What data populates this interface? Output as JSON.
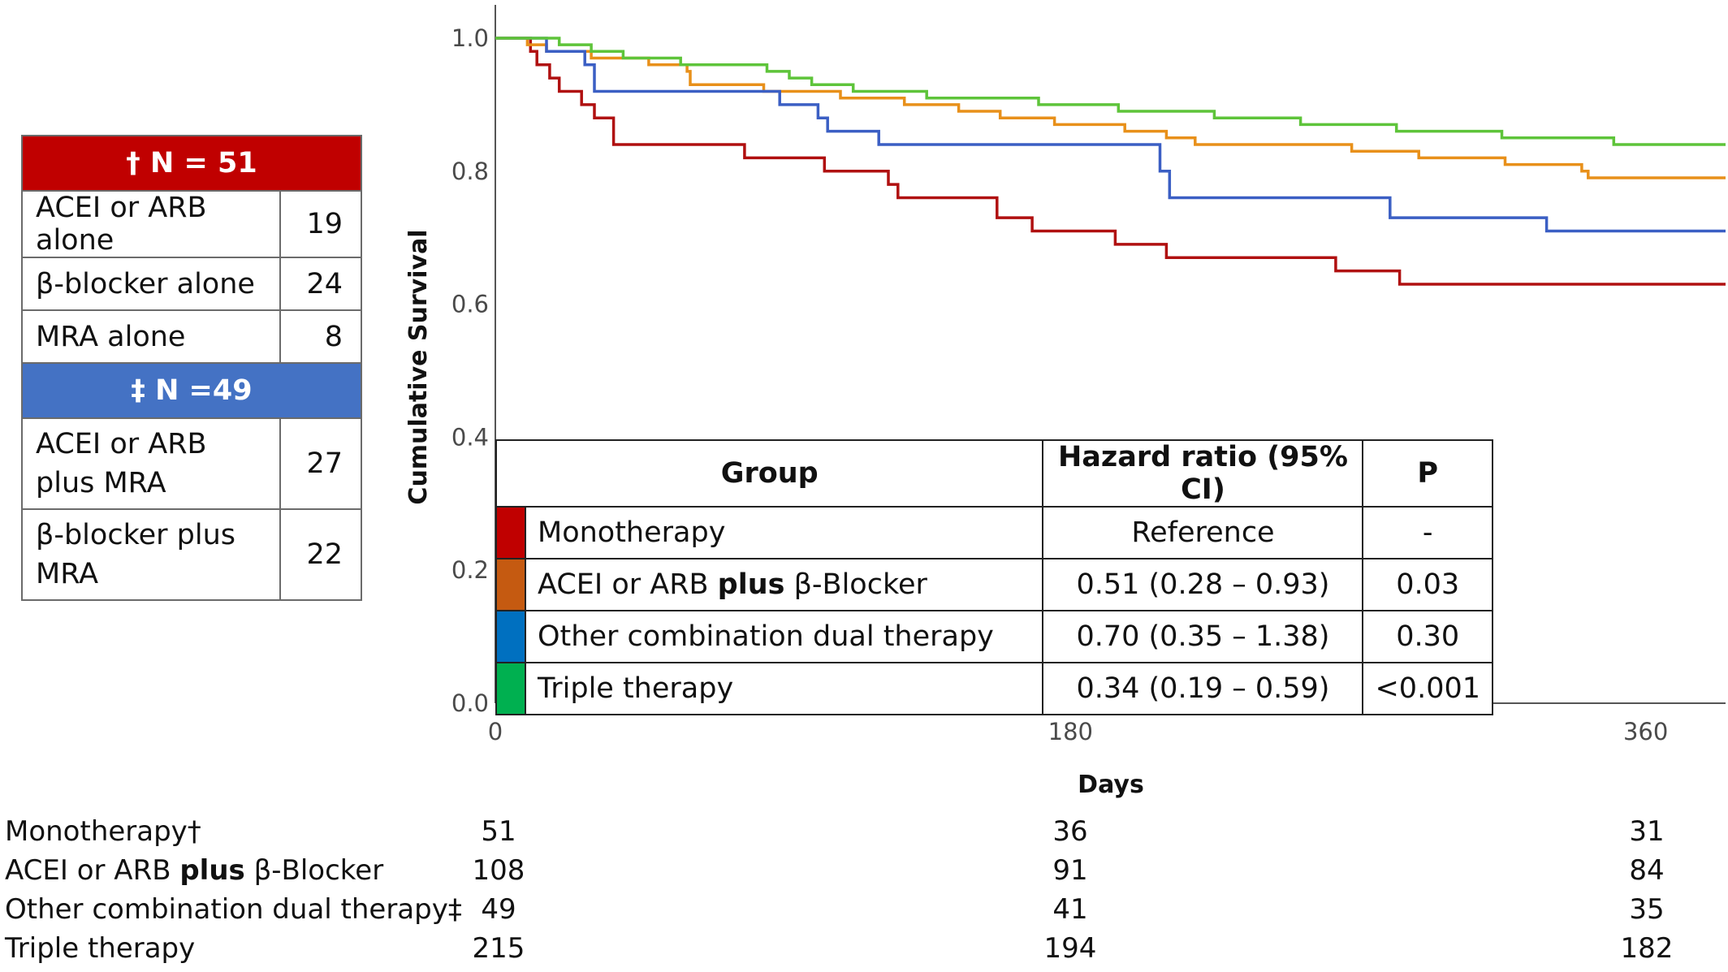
{
  "group_table": {
    "monotherapy_header": "† N = 51",
    "mono_rows": [
      {
        "label": "ACEI or ARB alone",
        "n": "19"
      },
      {
        "label": "β-blocker alone",
        "n": "24"
      },
      {
        "label": "MRA alone",
        "n": "8"
      }
    ],
    "dual_header": "‡ N =49",
    "dual_rows": [
      {
        "label": "ACEI or ARB plus MRA",
        "n": "27"
      },
      {
        "label": "β-blocker plus MRA",
        "n": "22"
      }
    ],
    "colors": {
      "mono_header": "#c00000",
      "dual_header": "#4472c4"
    }
  },
  "hr_table": {
    "headers": [
      "Group",
      "Hazard ratio (95% CI)",
      "P"
    ],
    "rows": [
      {
        "color": "#c00000",
        "group": "Monotherapy",
        "hr": "Reference",
        "p": "-"
      },
      {
        "color": "#c55a11",
        "group_pre": "ACEI or ARB ",
        "group_bold": "plus",
        "group_post": " β-Blocker",
        "hr": "0.51 (0.28 – 0.93)",
        "p": "0.03"
      },
      {
        "color": "#0070c0",
        "group": "Other combination dual therapy",
        "hr": "0.70 (0.35 – 1.38)",
        "p": "0.30"
      },
      {
        "color": "#00b050",
        "group": "Triple therapy",
        "hr": "0.34 (0.19 – 0.59)",
        "p": "<0.001"
      }
    ]
  },
  "risk_table": {
    "rows": [
      {
        "label": "Monotherapy†",
        "values": [
          "51",
          "36",
          "31"
        ]
      },
      {
        "label_pre": "ACEI or ARB ",
        "label_bold": "plus",
        "label_post": " β-Blocker",
        "values": [
          "108",
          "91",
          "84"
        ]
      },
      {
        "label": "Other combination dual therapy‡",
        "values": [
          "49",
          "41",
          "35"
        ]
      },
      {
        "label": "Triple therapy",
        "values": [
          "215",
          "194",
          "182"
        ]
      }
    ]
  },
  "chart_data": {
    "type": "line",
    "subtype": "kaplan-meier step",
    "xlabel": "Days",
    "ylabel": "Cumulative Survival",
    "xlim": [
      0,
      385
    ],
    "ylim": [
      0,
      1.05
    ],
    "xticks": [
      0,
      180,
      360
    ],
    "yticks": [
      0.0,
      0.2,
      0.4,
      0.6,
      0.8,
      1.0
    ],
    "ytick_labels": [
      "0.0",
      "0.2",
      "0.4",
      "0.6",
      "0.8",
      "1.0"
    ],
    "grid": false,
    "series": [
      {
        "name": "Monotherapy",
        "color": "#b01010",
        "points": [
          [
            0,
            1.0
          ],
          [
            10,
            1.0
          ],
          [
            11,
            0.98
          ],
          [
            13,
            0.96
          ],
          [
            17,
            0.94
          ],
          [
            20,
            0.92
          ],
          [
            27,
            0.9
          ],
          [
            31,
            0.88
          ],
          [
            37,
            0.84
          ],
          [
            78,
            0.84
          ],
          [
            78,
            0.82
          ],
          [
            103,
            0.82
          ],
          [
            103,
            0.8
          ],
          [
            121,
            0.8
          ],
          [
            123,
            0.78
          ],
          [
            126,
            0.76
          ],
          [
            157,
            0.76
          ],
          [
            157,
            0.73
          ],
          [
            168,
            0.73
          ],
          [
            168,
            0.71
          ],
          [
            194,
            0.71
          ],
          [
            194,
            0.69
          ],
          [
            210,
            0.69
          ],
          [
            210,
            0.67
          ],
          [
            263,
            0.67
          ],
          [
            263,
            0.65
          ],
          [
            283,
            0.65
          ],
          [
            283,
            0.63
          ],
          [
            385,
            0.63
          ]
        ]
      },
      {
        "name": "ACEI or ARB plus β-Blocker",
        "color": "#e8901a",
        "points": [
          [
            0,
            1.0
          ],
          [
            9,
            1.0
          ],
          [
            10,
            0.99
          ],
          [
            16,
            0.98
          ],
          [
            30,
            0.97
          ],
          [
            48,
            0.96
          ],
          [
            60,
            0.95
          ],
          [
            61,
            0.93
          ],
          [
            83,
            0.93
          ],
          [
            84,
            0.92
          ],
          [
            108,
            0.91
          ],
          [
            128,
            0.9
          ],
          [
            145,
            0.89
          ],
          [
            158,
            0.88
          ],
          [
            175,
            0.87
          ],
          [
            197,
            0.86
          ],
          [
            210,
            0.85
          ],
          [
            219,
            0.84
          ],
          [
            268,
            0.83
          ],
          [
            289,
            0.82
          ],
          [
            316,
            0.81
          ],
          [
            340,
            0.8
          ],
          [
            342,
            0.79
          ],
          [
            385,
            0.79
          ]
        ]
      },
      {
        "name": "Other combination dual therapy",
        "color": "#3b5fc4",
        "points": [
          [
            0,
            1.0
          ],
          [
            16,
            1.0
          ],
          [
            16,
            0.98
          ],
          [
            25,
            0.98
          ],
          [
            28,
            0.96
          ],
          [
            31,
            0.94
          ],
          [
            31,
            0.92
          ],
          [
            86,
            0.92
          ],
          [
            89,
            0.9
          ],
          [
            101,
            0.88
          ],
          [
            104,
            0.86
          ],
          [
            120,
            0.86
          ],
          [
            120,
            0.84
          ],
          [
            207,
            0.84
          ],
          [
            208,
            0.8
          ],
          [
            211,
            0.78
          ],
          [
            211,
            0.76
          ],
          [
            280,
            0.76
          ],
          [
            280,
            0.73
          ],
          [
            329,
            0.73
          ],
          [
            329,
            0.71
          ],
          [
            385,
            0.71
          ]
        ]
      },
      {
        "name": "Triple therapy",
        "color": "#5ec43a",
        "points": [
          [
            0,
            1.0
          ],
          [
            17,
            1.0
          ],
          [
            20,
            0.99
          ],
          [
            30,
            0.98
          ],
          [
            40,
            0.97
          ],
          [
            58,
            0.96
          ],
          [
            85,
            0.95
          ],
          [
            92,
            0.94
          ],
          [
            99,
            0.93
          ],
          [
            112,
            0.92
          ],
          [
            135,
            0.91
          ],
          [
            170,
            0.9
          ],
          [
            195,
            0.89
          ],
          [
            225,
            0.88
          ],
          [
            252,
            0.87
          ],
          [
            282,
            0.86
          ],
          [
            315,
            0.85
          ],
          [
            350,
            0.84
          ],
          [
            385,
            0.84
          ]
        ]
      }
    ],
    "numbers_at_risk": {
      "x": [
        0,
        180,
        360
      ],
      "Monotherapy": [
        51,
        36,
        31
      ],
      "ACEI or ARB plus β-Blocker": [
        108,
        91,
        84
      ],
      "Other combination dual therapy": [
        49,
        41,
        35
      ],
      "Triple therapy": [
        215,
        194,
        182
      ]
    }
  }
}
